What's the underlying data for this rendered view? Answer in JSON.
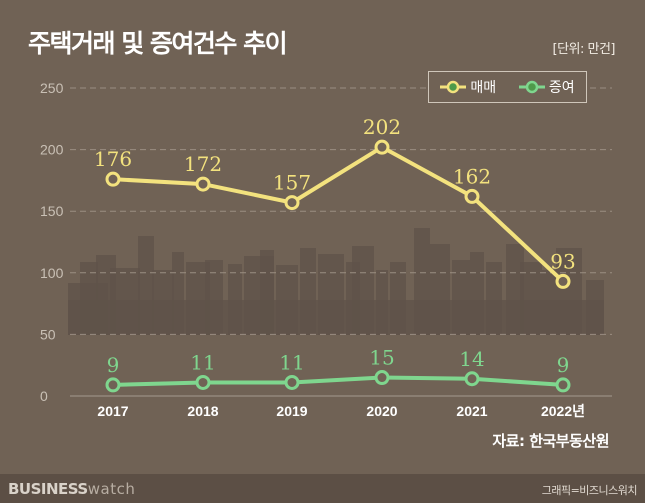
{
  "title": "주택거래 및 증여건수 추이",
  "unit": "[단위: 만건]",
  "source": "자료: 한국부동산원",
  "footer": {
    "brand_bold": "BUSINESS",
    "brand_light": "watch",
    "credit": "그래픽=비즈니스워치"
  },
  "colors": {
    "background": "#706255",
    "trade": "#f3e27e",
    "gift": "#7fd68e",
    "grid": "#9a8e82"
  },
  "chart_data": {
    "type": "line",
    "categories": [
      "2017",
      "2018",
      "2019",
      "2020",
      "2021",
      "2022년"
    ],
    "yticks": [
      "0",
      "50",
      "100",
      "150",
      "200",
      "250"
    ],
    "ylim": [
      0,
      250
    ],
    "grid": true,
    "legend_position": "top-right",
    "series": [
      {
        "name": "매매",
        "values": [
          176,
          172,
          157,
          202,
          162,
          93
        ],
        "labels": [
          "176",
          "172",
          "157",
          "202",
          "162",
          "93"
        ]
      },
      {
        "name": "증여",
        "values": [
          9,
          11,
          11,
          15,
          14,
          9
        ],
        "labels": [
          "9",
          "11",
          "11",
          "15",
          "14",
          "9"
        ]
      }
    ]
  }
}
